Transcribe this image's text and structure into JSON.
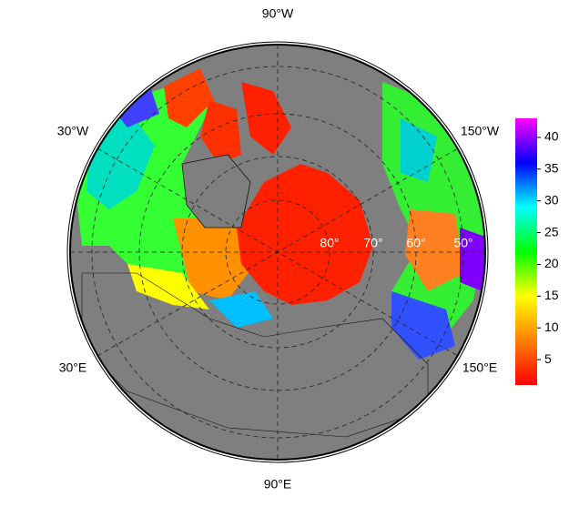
{
  "map": {
    "longitude_labels": [
      "90°W",
      "30°W",
      "150°W",
      "30°E",
      "150°E",
      "90°E"
    ],
    "latitude_labels": [
      "80°",
      "70°",
      "60°",
      "50°"
    ],
    "colorbar": {
      "lim": [
        1,
        43
      ],
      "ticks": [
        5,
        10,
        15,
        20,
        25,
        30,
        35,
        40
      ],
      "colors": [
        "#ff0000",
        "#ff8000",
        "#ffff00",
        "#00ff00",
        "#00ffff",
        "#0000ff",
        "#ff00ff"
      ]
    }
  }
}
